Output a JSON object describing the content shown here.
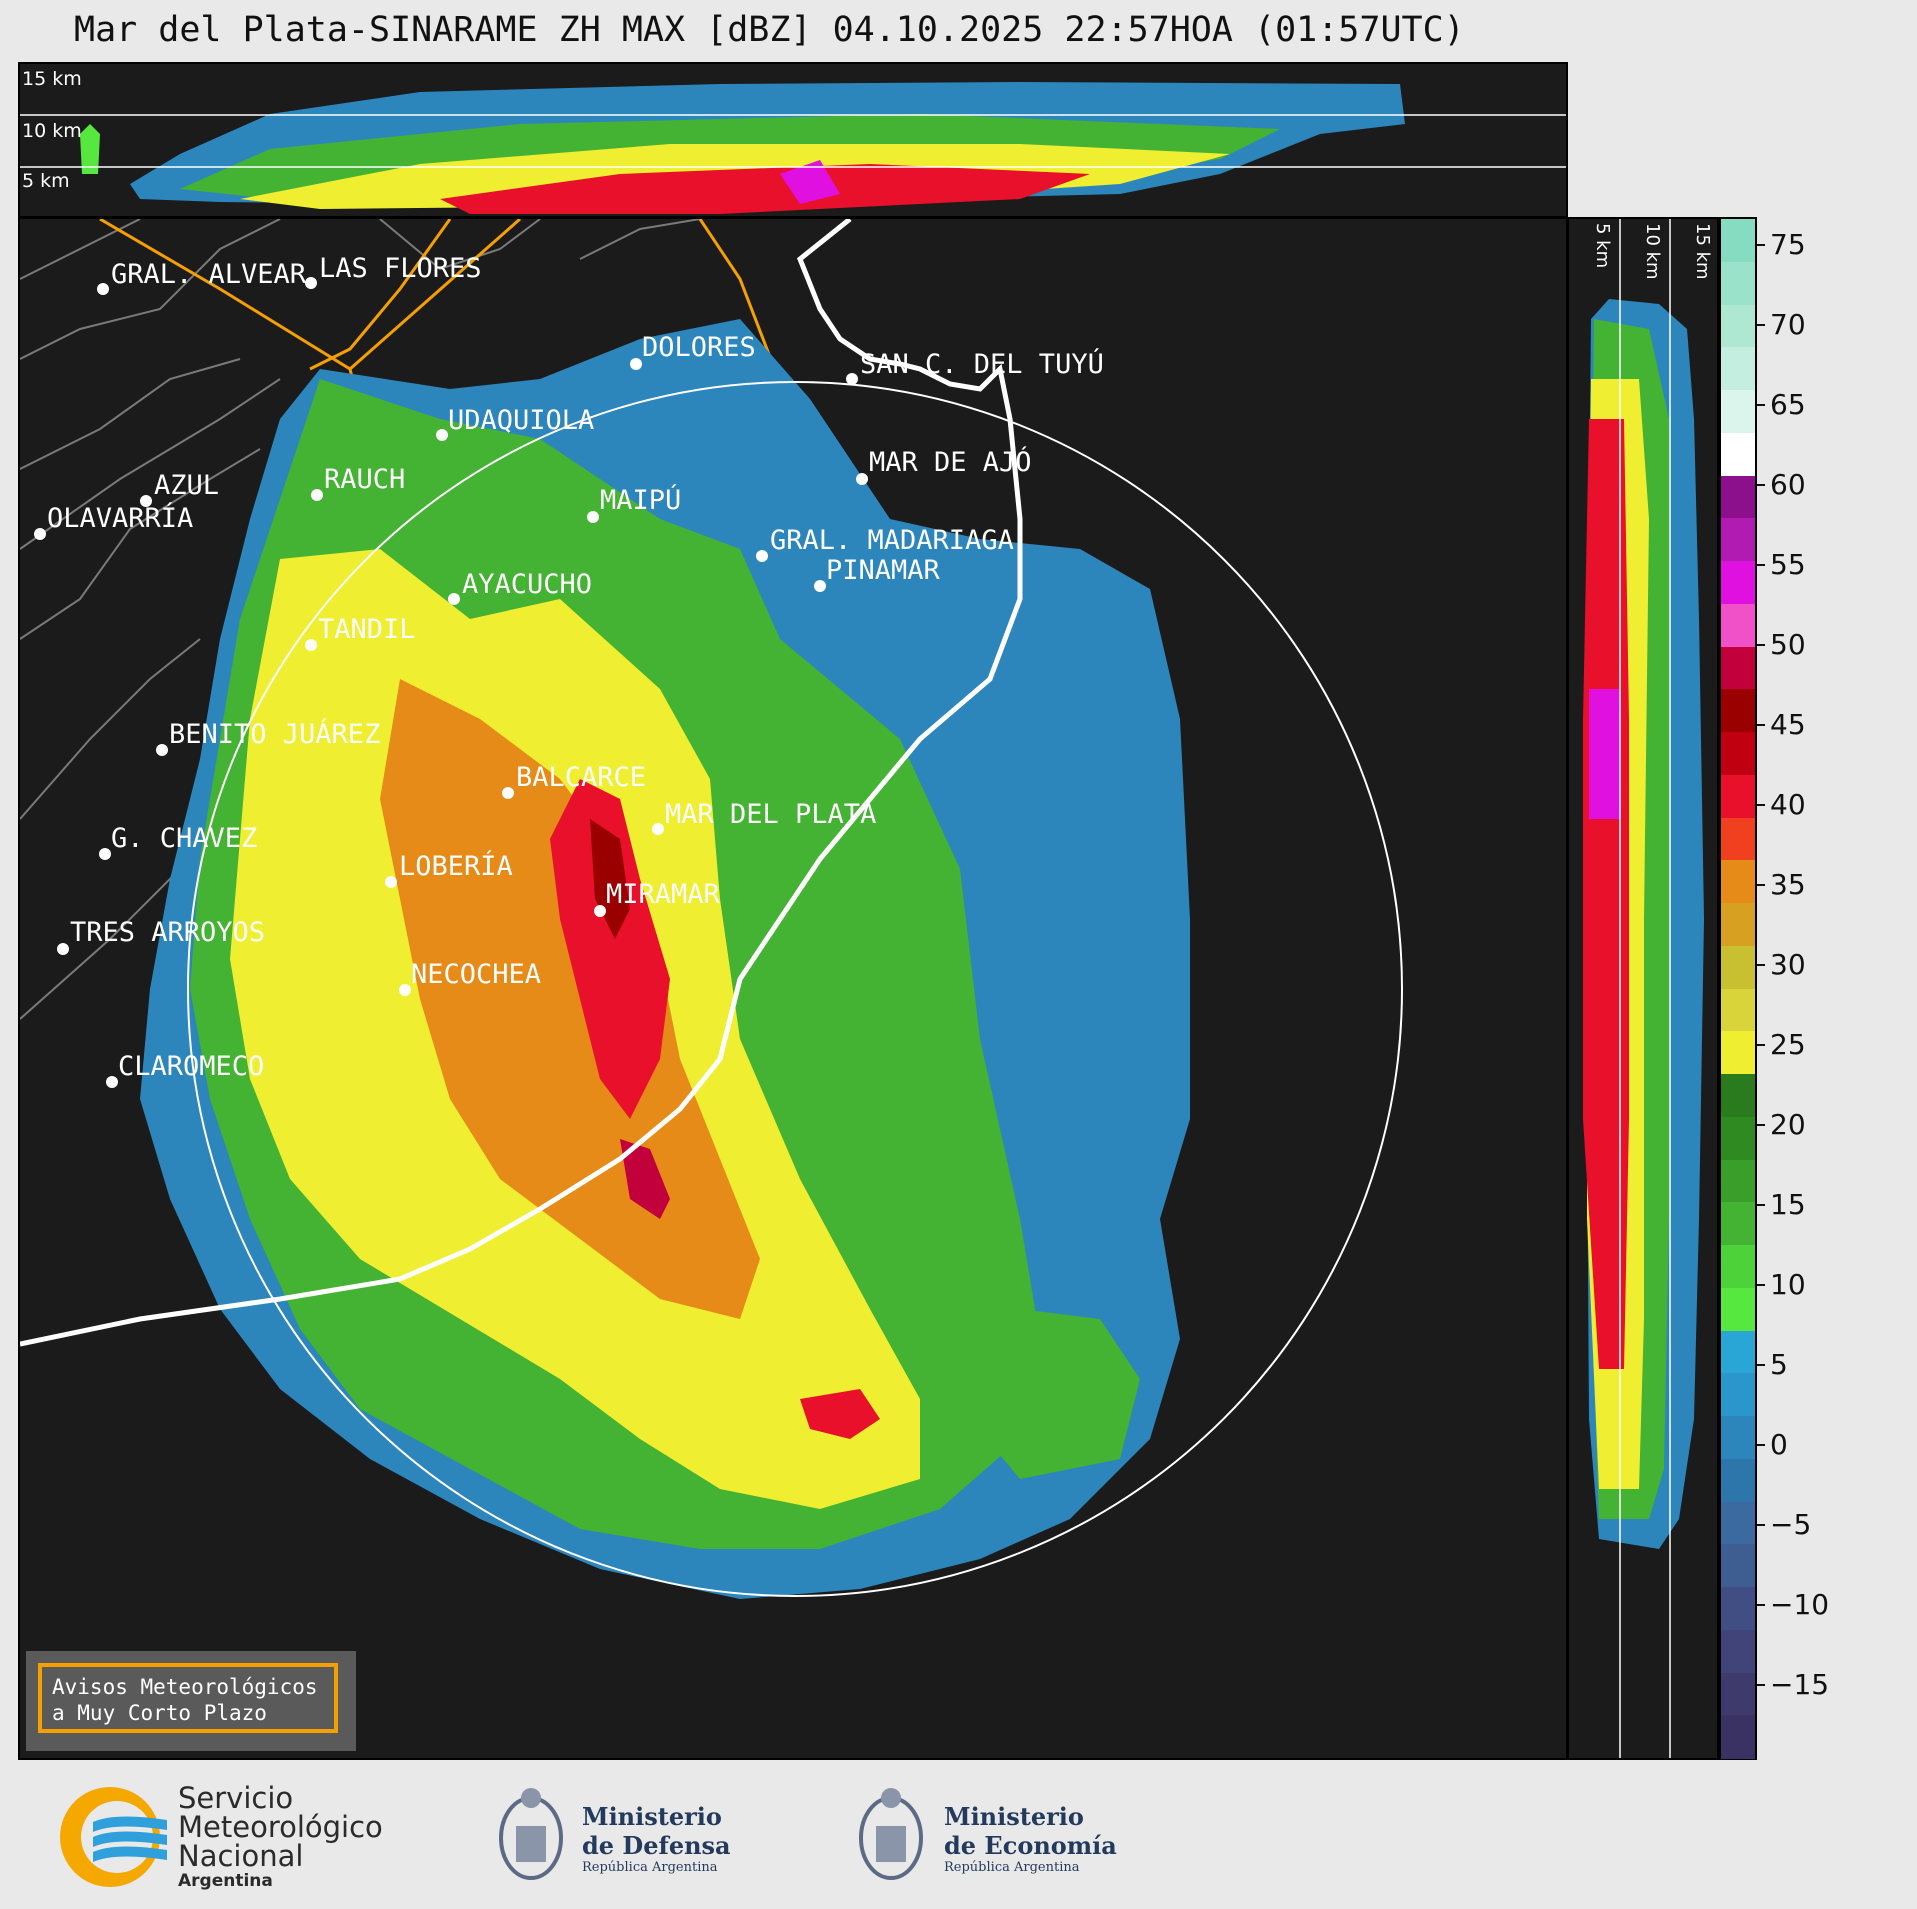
{
  "title": "Mar del Plata-SINARAME ZH MAX [dBZ] 04.10.2025 22:57HOA (01:57UTC)",
  "altitudes": [
    "15 km",
    "10 km",
    "5 km"
  ],
  "side_altitudes": [
    "5 km",
    "10 km",
    "15 km"
  ],
  "cities": [
    {
      "name": "GRAL. ALVEAR"
    },
    {
      "name": "LAS FLORES"
    },
    {
      "name": "DOLORES"
    },
    {
      "name": "SAN C. DEL TUYÚ"
    },
    {
      "name": "UDAQUIOLA"
    },
    {
      "name": "MAR DE AJÓ"
    },
    {
      "name": "AZUL"
    },
    {
      "name": "RAUCH"
    },
    {
      "name": "MAIPÚ"
    },
    {
      "name": "OLAVARRÍA"
    },
    {
      "name": "GRAL. MADARIAGA"
    },
    {
      "name": "PINAMAR"
    },
    {
      "name": "AYACUCHO"
    },
    {
      "name": "TANDIL"
    },
    {
      "name": "BENITO JUÁREZ"
    },
    {
      "name": "BALCARCE"
    },
    {
      "name": "MAR DEL PLATA"
    },
    {
      "name": "G. CHAVEZ"
    },
    {
      "name": "LOBERÍA"
    },
    {
      "name": "MIRAMAR"
    },
    {
      "name": "TRES ARROYOS"
    },
    {
      "name": "NECOCHEA"
    },
    {
      "name": "CLAROMECO"
    }
  ],
  "colorbar": {
    "ticks": [
      "75",
      "70",
      "65",
      "60",
      "55",
      "50",
      "45",
      "40",
      "35",
      "30",
      "25",
      "20",
      "15",
      "10",
      "5",
      "0",
      "−5",
      "−10",
      "−15"
    ],
    "segments": [
      "#86dcc0",
      "#9ae2c9",
      "#aee8d3",
      "#c4eedf",
      "#dcf5ec",
      "#ffffff",
      "#8c0f8c",
      "#b21bb2",
      "#e010e0",
      "#f050c8",
      "#c2003c",
      "#9a0000",
      "#c00010",
      "#e8102a",
      "#f04020",
      "#e68a18",
      "#d8a020",
      "#c8c030",
      "#d8d43a",
      "#f0ee30",
      "#2a7a1e",
      "#2f8a22",
      "#3a9e2a",
      "#44b232",
      "#4ed23a",
      "#56e83e",
      "#2aa6d6",
      "#2b96cc",
      "#2c86bc",
      "#2c76ac",
      "#3a6aa0",
      "#3e5e92",
      "#404e84",
      "#404478",
      "#3e3a6c",
      "#3a3262"
    ]
  },
  "warning": {
    "line1": "Avisos Meteorológicos",
    "line2": "a Muy Corto Plazo"
  },
  "footer": {
    "smn": [
      "Servicio",
      "Meteorológico",
      "Nacional",
      "Argentina"
    ],
    "defensa": [
      "Ministerio",
      "de Defensa",
      "República Argentina"
    ],
    "economia": [
      "Ministerio",
      "de Economía",
      "República Argentina"
    ]
  }
}
